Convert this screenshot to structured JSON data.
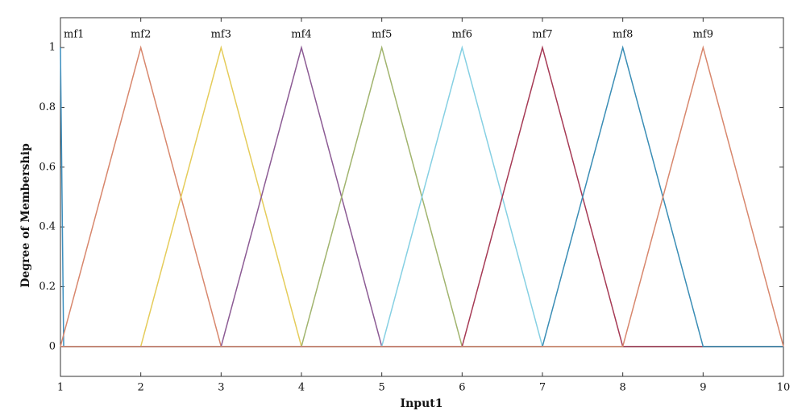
{
  "chart_data": {
    "type": "line",
    "xlabel": "Input1",
    "ylabel": "Degree of Membership",
    "xlim": [
      1,
      10
    ],
    "ylim": [
      -0.1,
      1.1
    ],
    "xticks": [
      1,
      2,
      3,
      4,
      5,
      6,
      7,
      8,
      9,
      10
    ],
    "yticks": [
      0,
      0.2,
      0.4,
      0.6,
      0.8,
      1
    ],
    "grid": false,
    "series": [
      {
        "name": "mf1",
        "color": "#3c8fbf",
        "x": [
          1,
          1.04,
          10
        ],
        "values": [
          1,
          0,
          0
        ]
      },
      {
        "name": "mf2",
        "color": "#d8876d",
        "x": [
          1,
          2,
          3,
          10
        ],
        "values": [
          0,
          1,
          0,
          0
        ]
      },
      {
        "name": "mf3",
        "color": "#e5cc5a",
        "x": [
          1,
          2,
          3,
          4,
          10
        ],
        "values": [
          0,
          0,
          1,
          0,
          0
        ]
      },
      {
        "name": "mf4",
        "color": "#8c5b94",
        "x": [
          1,
          3,
          4,
          5,
          10
        ],
        "values": [
          0,
          0,
          1,
          0,
          0
        ]
      },
      {
        "name": "mf5",
        "color": "#a1b46e",
        "x": [
          1,
          4,
          5,
          6,
          10
        ],
        "values": [
          0,
          0,
          1,
          0,
          0
        ]
      },
      {
        "name": "mf6",
        "color": "#86d0e3",
        "x": [
          1,
          5,
          6,
          7,
          10
        ],
        "values": [
          0,
          0,
          1,
          0,
          0
        ]
      },
      {
        "name": "mf7",
        "color": "#a63a55",
        "x": [
          1,
          6,
          7,
          8,
          10
        ],
        "values": [
          0,
          0,
          1,
          0,
          0
        ]
      },
      {
        "name": "mf8",
        "color": "#3a8db5",
        "x": [
          1,
          7,
          8,
          9,
          10
        ],
        "values": [
          0,
          0,
          1,
          0,
          0
        ]
      },
      {
        "name": "mf9",
        "color": "#d8876d",
        "x": [
          1,
          8,
          9,
          10
        ],
        "values": [
          0,
          0,
          1,
          0
        ]
      }
    ]
  }
}
